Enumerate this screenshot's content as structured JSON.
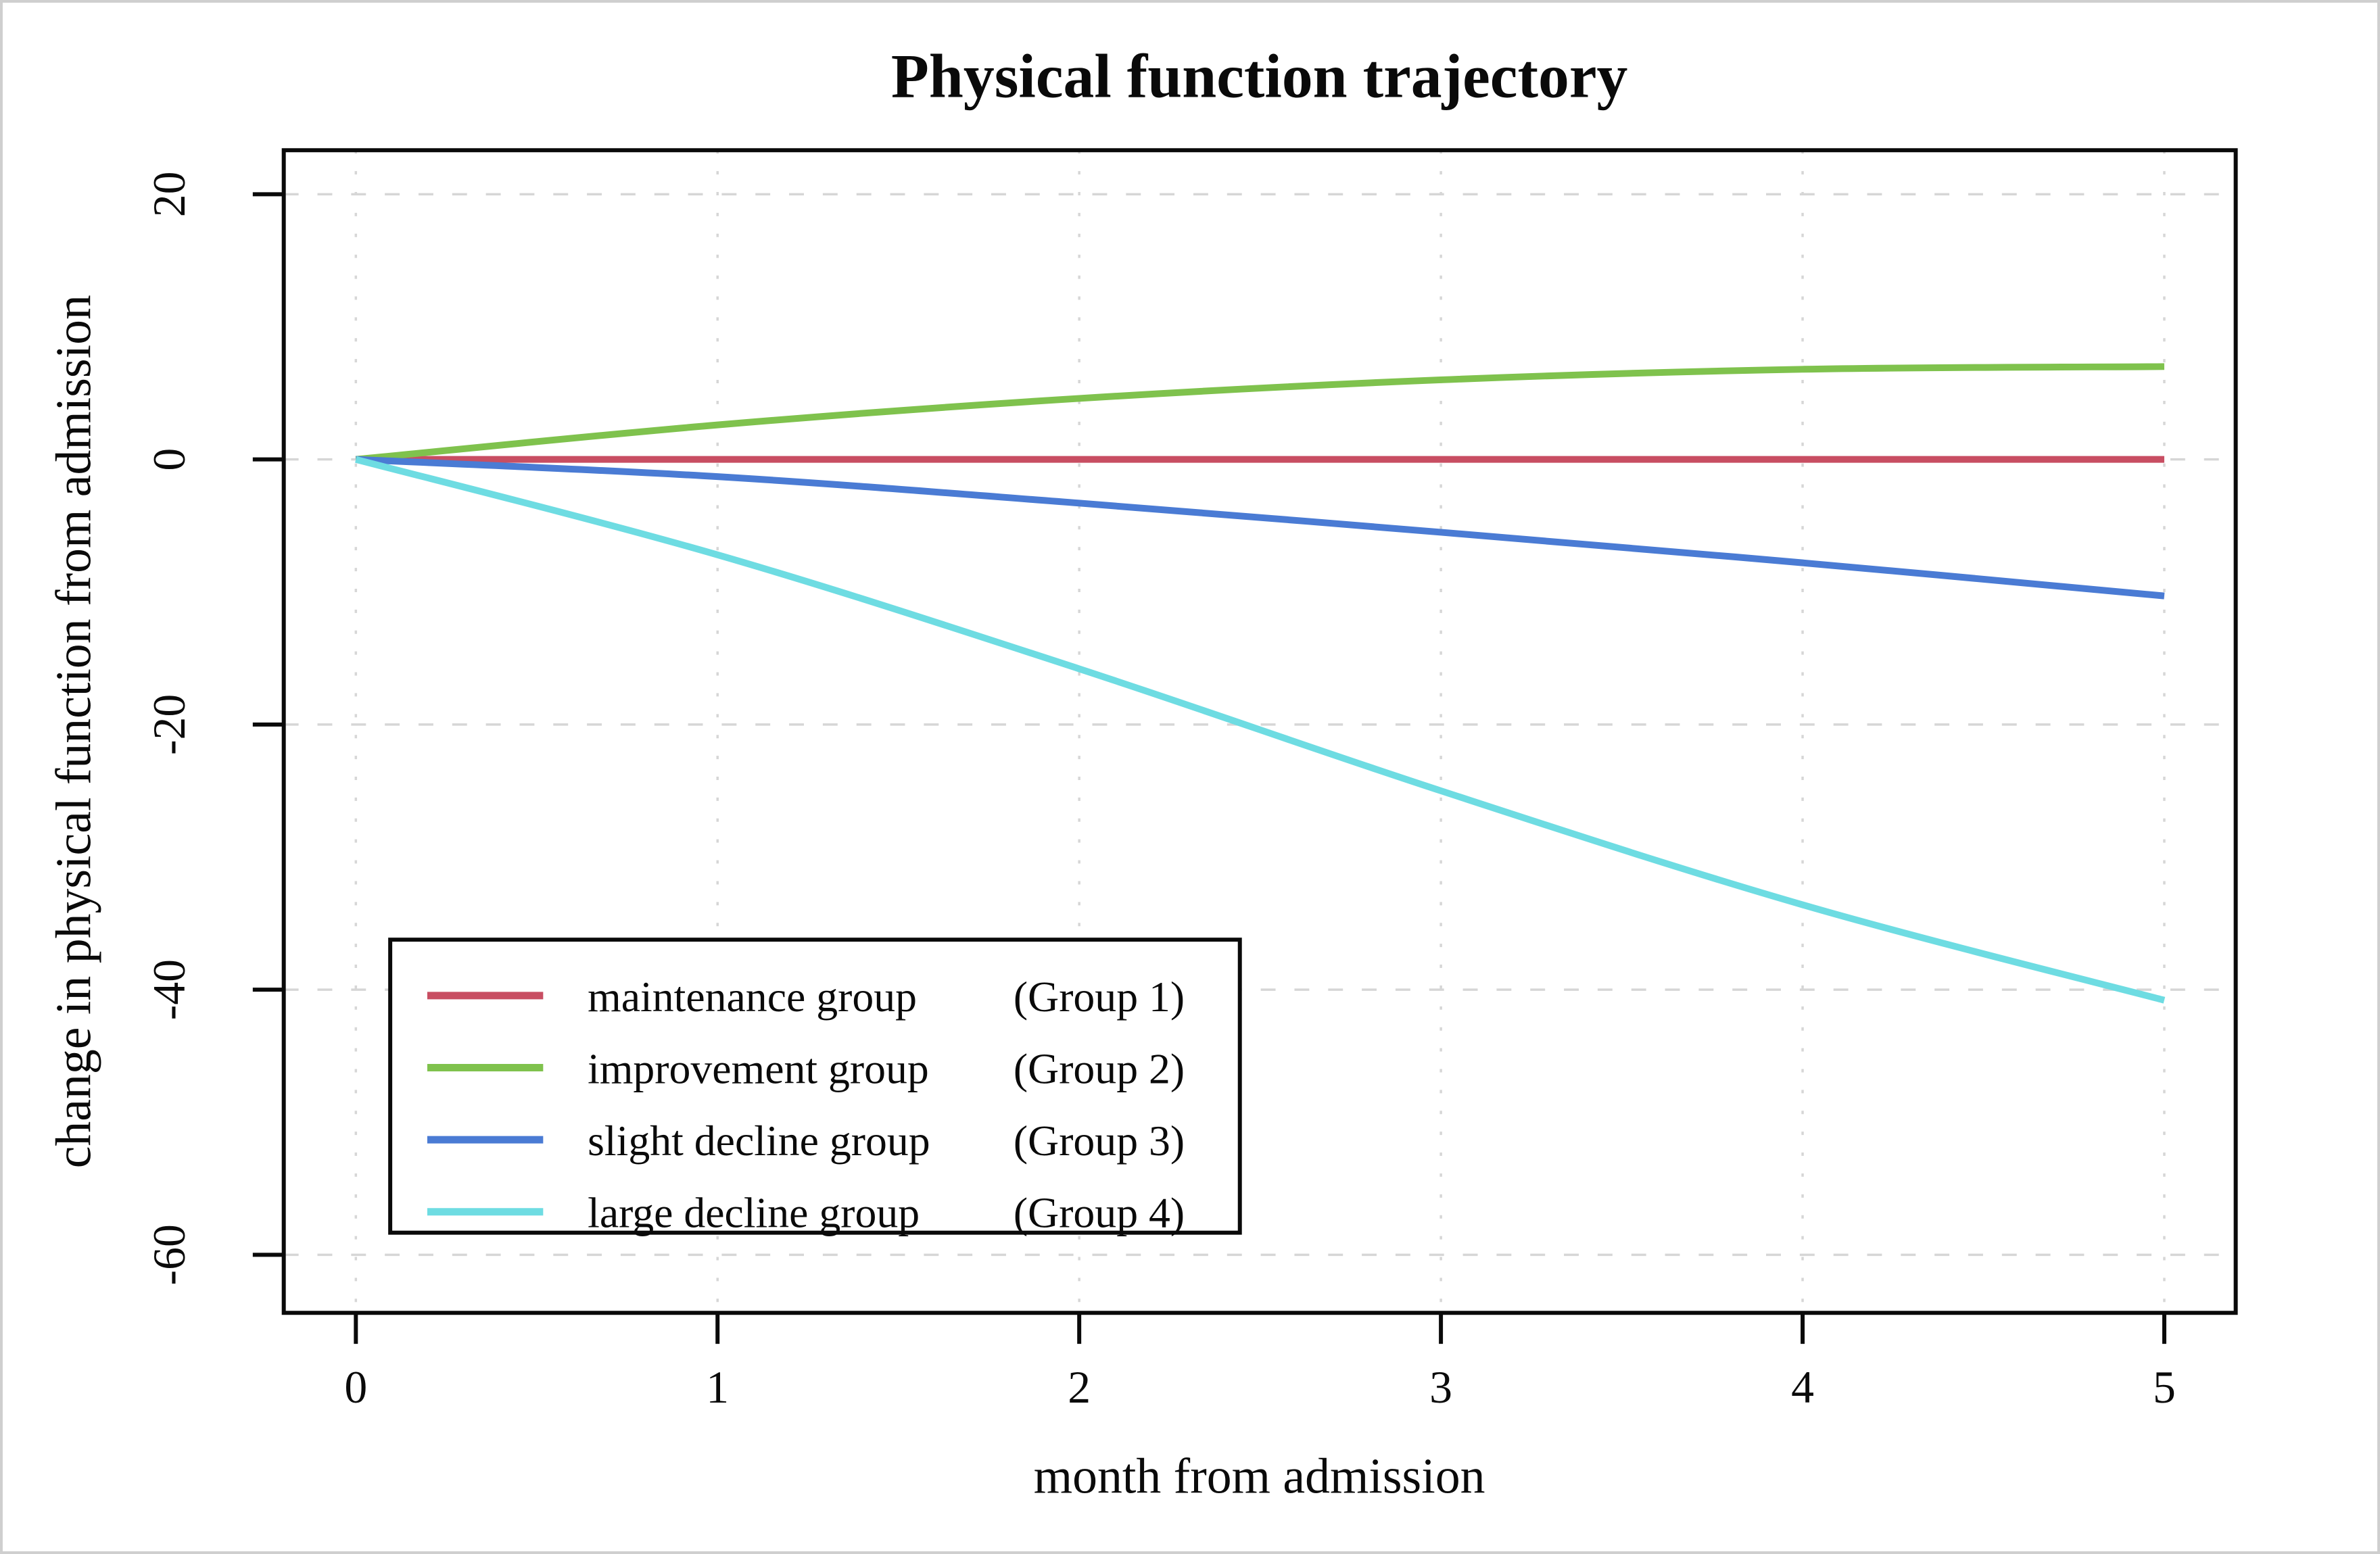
{
  "chart_data": {
    "type": "line",
    "title": "Physical function trajectory",
    "xlabel": "month from admission",
    "ylabel": "change in physical function from admission",
    "x": [
      0,
      1,
      2,
      3,
      4,
      5
    ],
    "x_tick_labels": [
      "0",
      "1",
      "2",
      "3",
      "4",
      "5"
    ],
    "y_ticks": [
      20,
      0,
      -20,
      -40,
      -60
    ],
    "y_tick_labels": [
      "20",
      "0",
      "-20",
      "-40",
      "-60"
    ],
    "xlim": [
      -0.2,
      5.2
    ],
    "ylim": [
      -64.5,
      23.4
    ],
    "grid": true,
    "grid_color": "#d6d6d6",
    "axis_color": "#0a0a0a",
    "background_color": "#ffffff",
    "legend_position": "lower-left",
    "series": [
      {
        "name": "maintenance group",
        "group_label": "(Group 1)",
        "color": "#c84e62",
        "values": [
          0,
          0,
          0,
          0,
          0,
          0
        ]
      },
      {
        "name": "improvement group",
        "group_label": "(Group 2)",
        "color": "#7fc24d",
        "values": [
          0,
          2.6,
          4.6,
          6.0,
          6.8,
          7.0
        ]
      },
      {
        "name": "slight decline group",
        "group_label": "(Group 3)",
        "color": "#4a7bd4",
        "values": [
          0,
          -1.3,
          -3.3,
          -5.5,
          -7.8,
          -10.3
        ]
      },
      {
        "name": "large decline group",
        "group_label": "(Group 4)",
        "color": "#6edce2",
        "values": [
          0,
          -7.2,
          -15.8,
          -25.0,
          -33.6,
          -40.8
        ]
      }
    ]
  }
}
